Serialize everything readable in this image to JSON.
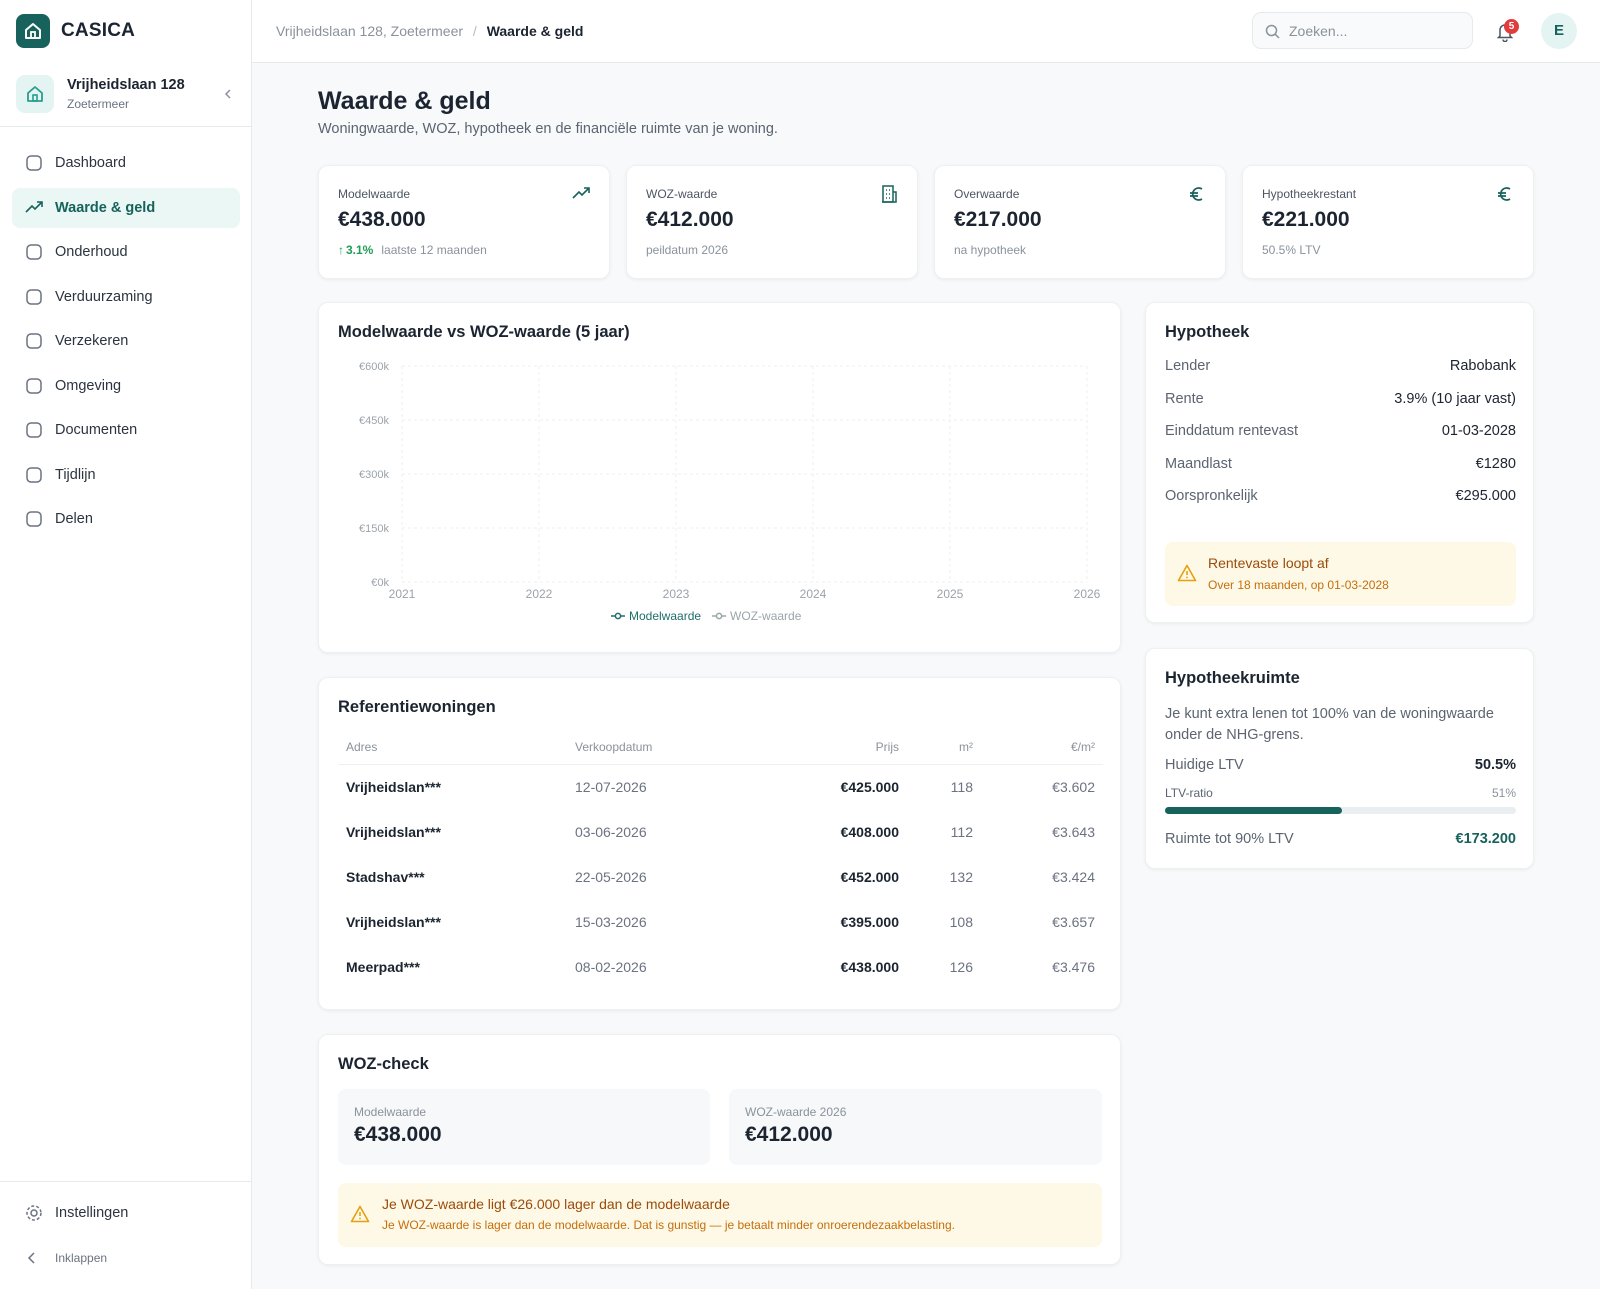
{
  "sidebar": {
    "brand": "CASICA",
    "property": {
      "name": "Vrijheidslaan 128",
      "city": "Zoetermeer"
    },
    "nav": [
      "Dashboard",
      "Waarde & geld",
      "Onderhoud",
      "Verduurzaming",
      "Verzekeren",
      "Omgeving",
      "Documenten",
      "Tijdlijn",
      "Delen"
    ],
    "settings": "Instellingen",
    "collapse": "Inklappen"
  },
  "header": {
    "breadcrumb": [
      "Vrijheidslaan 128, Zoetermeer",
      "Waarde & geld"
    ],
    "search_placeholder": "Zoeken...",
    "notifications": 5,
    "avatar": "E"
  },
  "page": {
    "title": "Waarde & geld",
    "subtitle": "Woningwaarde, WOZ, hypotheek en de financiële ruimte van je woning."
  },
  "kpis": [
    {
      "label": "Modelwaarde",
      "value": "€438.000",
      "change": "3.1%",
      "note": "laatste 12 maanden"
    },
    {
      "label": "WOZ-waarde",
      "value": "€412.000",
      "note": "peildatum 2026"
    },
    {
      "label": "Overwaarde",
      "value": "€217.000",
      "note": "na hypotheek"
    },
    {
      "label": "Hypotheekrestant",
      "value": "€221.000",
      "note": "50.5% LTV"
    }
  ],
  "chart_data": {
    "type": "line",
    "title": "Modelwaarde vs WOZ-waarde (5 jaar)",
    "xlim": [
      2021,
      2026
    ],
    "xticks": [
      2021,
      2022,
      2023,
      2024,
      2025,
      2026
    ],
    "ylim": [
      0,
      600
    ],
    "yticks": [
      {
        "value": 0,
        "label": "€0k"
      },
      {
        "value": 150,
        "label": "€150k"
      },
      {
        "value": 300,
        "label": "€300k"
      },
      {
        "value": 450,
        "label": "€450k"
      },
      {
        "value": 600,
        "label": "€600k"
      }
    ],
    "grid": true,
    "legend": "bottom",
    "series": [
      {
        "name": "Modelwaarde",
        "color": "#1f6f68"
      },
      {
        "name": "WOZ-waarde",
        "color": "#9aa5a8"
      }
    ]
  },
  "references": {
    "title": "Referentiewoningen",
    "columns": [
      "Adres",
      "Verkoopdatum",
      "Prijs",
      "m²",
      "€/m²"
    ],
    "rows": [
      [
        "Vrijheidslan***",
        "12-07-2026",
        "€425.000",
        "118",
        "€3.602"
      ],
      [
        "Vrijheidslan***",
        "03-06-2026",
        "€408.000",
        "112",
        "€3.643"
      ],
      [
        "Stadshav***",
        "22-05-2026",
        "€452.000",
        "132",
        "€3.424"
      ],
      [
        "Vrijheidslan***",
        "15-03-2026",
        "€395.000",
        "108",
        "€3.657"
      ],
      [
        "Meerpad***",
        "08-02-2026",
        "€438.000",
        "126",
        "€3.476"
      ]
    ]
  },
  "mortgage": {
    "title": "Hypotheek",
    "rows": [
      [
        "Lender",
        "Rabobank"
      ],
      [
        "Rente",
        "3.9% (10 jaar vast)"
      ],
      [
        "Einddatum rentevast",
        "01-03-2028"
      ],
      [
        "Maandlast",
        "€1280"
      ],
      [
        "Oorspronkelijk",
        "€295.000"
      ]
    ],
    "alert": {
      "title": "Rentevaste loopt af",
      "text": "Over 18 maanden, op 01-03-2028"
    }
  },
  "capacity": {
    "title": "Hypotheekruimte",
    "text": "Je kunt extra lenen tot 100% van de woningwaarde onder de NHG-grens.",
    "current_ltv": {
      "label": "Huidige LTV",
      "value": "50.5%"
    },
    "bar": {
      "label": "LTV-ratio",
      "value": 50.5,
      "value_label": "51%"
    },
    "room": {
      "label": "Ruimte tot 90% LTV",
      "value": "€173.200"
    }
  },
  "woz_check": {
    "title": "WOZ-check",
    "model": {
      "label": "Modelwaarde",
      "value": "€438.000"
    },
    "woz": {
      "label": "WOZ-waarde 2026",
      "value": "€412.000"
    },
    "alert": {
      "title": "Je WOZ-waarde ligt €26.000 lager dan de modelwaarde",
      "text": "Je WOZ-waarde is lager dan de modelwaarde. Dat is gunstig — je betaalt minder onroerendezaakbelasting."
    }
  }
}
